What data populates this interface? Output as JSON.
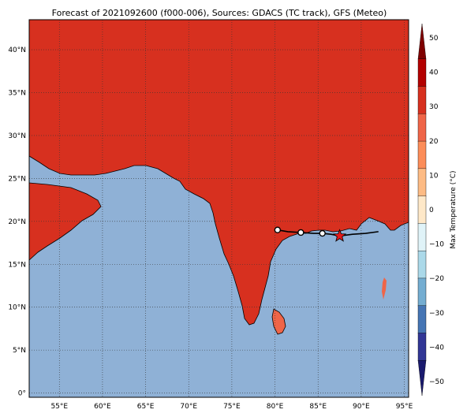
{
  "title": "Forecast of 2021092600 (f000-006), Sources: GDACS (TC track), GFS (Meteo)",
  "colors": {
    "ocean": "#8fb1d6",
    "land_hot": "#d7301f",
    "land_warm": "#ef6548",
    "land_mild": "#fc8d59",
    "land_cool": "#fdbb84",
    "land_cold": "#fee8c8",
    "ice": "#e0f3f8",
    "star": "#e41a1c"
  },
  "map": {
    "lon_ticks": [
      "55°E",
      "60°E",
      "65°E",
      "70°E",
      "75°E",
      "80°E",
      "85°E",
      "90°E",
      "95°E"
    ],
    "lat_ticks": [
      "0°",
      "5°N",
      "10°N",
      "15°N",
      "20°N",
      "25°N",
      "30°N",
      "35°N",
      "40°N"
    ]
  },
  "track": {
    "points": [
      {
        "lon": 92.0,
        "lat": 18.8
      },
      {
        "lon": 90.5,
        "lat": 18.6
      },
      {
        "lon": 89.0,
        "lat": 18.5
      },
      {
        "lon": 87.5,
        "lat": 18.3
      },
      {
        "lon": 86.5,
        "lat": 18.5
      },
      {
        "lon": 85.5,
        "lat": 18.6
      },
      {
        "lon": 84.5,
        "lat": 18.6
      },
      {
        "lon": 83.0,
        "lat": 18.7
      },
      {
        "lon": 81.5,
        "lat": 18.8
      },
      {
        "lon": 80.3,
        "lat": 19.0
      }
    ],
    "current": {
      "lon": 87.5,
      "lat": 18.3
    },
    "symbols": [
      {
        "lon": 85.5,
        "lat": 18.6
      },
      {
        "lon": 83.0,
        "lat": 18.7
      },
      {
        "lon": 80.3,
        "lat": 19.0
      }
    ]
  },
  "colorbar": {
    "label": "Max Temperature (°C)",
    "ticks": [
      "50",
      "40",
      "30",
      "20",
      "10",
      "0",
      "−10",
      "−20",
      "−30",
      "−40",
      "−50"
    ],
    "colors": [
      "#7f0000",
      "#b30000",
      "#d7301f",
      "#ef6548",
      "#fc8d59",
      "#fdbb84",
      "#fee8c8",
      "#e0f3f8",
      "#abd9e9",
      "#74add1",
      "#4575b4",
      "#313695",
      "#1a1a6e"
    ]
  }
}
